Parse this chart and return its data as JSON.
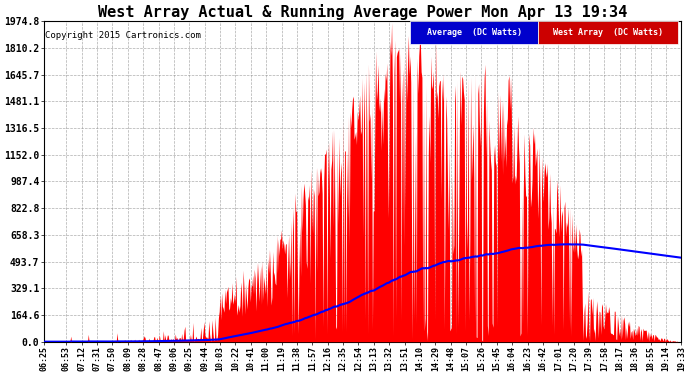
{
  "title": "West Array Actual & Running Average Power Mon Apr 13 19:34",
  "copyright": "Copyright 2015 Cartronics.com",
  "legend_labels": [
    "Average  (DC Watts)",
    "West Array  (DC Watts)"
  ],
  "yticks": [
    0.0,
    164.6,
    329.1,
    493.7,
    658.3,
    822.8,
    987.4,
    1152.0,
    1316.5,
    1481.1,
    1645.7,
    1810.2,
    1974.8
  ],
  "ymax": 1974.8,
  "ymin": 0.0,
  "background_color": "#ffffff",
  "plot_bg_color": "#ffffff",
  "grid_color": "#999999",
  "bar_color": "#ff0000",
  "avg_color": "#0000ff",
  "legend_blue_bg": "#0000cc",
  "legend_red_bg": "#cc0000",
  "title_fontsize": 11,
  "xtick_labels": [
    "06:25",
    "06:53",
    "07:12",
    "07:31",
    "07:50",
    "08:09",
    "08:28",
    "08:47",
    "09:06",
    "09:25",
    "09:44",
    "10:03",
    "10:22",
    "10:41",
    "11:00",
    "11:19",
    "11:38",
    "11:57",
    "12:16",
    "12:35",
    "12:54",
    "13:13",
    "13:32",
    "13:51",
    "14:10",
    "14:29",
    "14:48",
    "15:07",
    "15:26",
    "15:45",
    "16:04",
    "16:23",
    "16:42",
    "17:01",
    "17:20",
    "17:39",
    "17:58",
    "18:17",
    "18:36",
    "18:55",
    "19:14",
    "19:33"
  ]
}
